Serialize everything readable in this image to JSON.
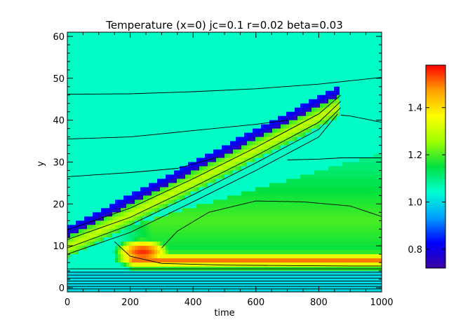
{
  "chart_data": {
    "type": "heatmap",
    "title": "Temperature (x=0) jc=0.1 r=0.02 beta=0.03",
    "xlabel": "time",
    "ylabel": "y",
    "xlim": [
      0,
      1000
    ],
    "ylim": [
      -1,
      61
    ],
    "xticks": [
      "0",
      "200",
      "400",
      "600",
      "800",
      "1000"
    ],
    "xtick_values": [
      0,
      200,
      400,
      600,
      800,
      1000
    ],
    "yticks": [
      "0",
      "10",
      "20",
      "30",
      "40",
      "50",
      "60"
    ],
    "ytick_values": [
      0,
      10,
      20,
      30,
      40,
      50,
      60
    ],
    "colorbar": {
      "range": [
        0.72,
        1.58
      ],
      "ticks": [
        "0.8",
        "1.0",
        "1.2",
        "1.4"
      ],
      "tick_values": [
        0.8,
        1.0,
        1.2,
        1.4
      ],
      "colormap": "rainbow",
      "colors": [
        "#3a00a0",
        "#0000ff",
        "#00a0ff",
        "#00ffd0",
        "#00e040",
        "#a0ff00",
        "#ffff00",
        "#ffa000",
        "#ff0000"
      ]
    },
    "background_value": 1.05,
    "features": {
      "hot_band": {
        "value": 1.5,
        "x_start": 150,
        "x_end": 1000,
        "y": 6.5
      },
      "hot_blob": {
        "value": 1.55,
        "x_center": 240,
        "y_center": 8.5
      },
      "green_region_value": 1.2,
      "front": {
        "x_start": 0,
        "x_end": 870,
        "y_start": 12,
        "y_end": 46,
        "hot_edge_value": 1.3,
        "cold_edge_value": 0.75
      }
    },
    "contours": [
      {
        "x": [
          0,
          200,
          400,
          600,
          800,
          1000
        ],
        "y": [
          46.2,
          46.3,
          46.8,
          47.5,
          48.6,
          50.2
        ]
      },
      {
        "x": [
          0,
          200,
          400,
          600,
          700,
          700
        ],
        "y": [
          35.5,
          36.0,
          37.5,
          39.0,
          40.0,
          40.5
        ]
      },
      {
        "x": [
          0,
          200,
          350,
          480
        ],
        "y": [
          26.5,
          27.5,
          28.5,
          31.2
        ]
      },
      {
        "x": [
          700,
          800,
          870,
          1000
        ],
        "y": [
          30.5,
          30.7,
          31.0,
          31.0
        ]
      },
      {
        "x": [
          870,
          900,
          1000
        ],
        "y": [
          41.2,
          41.0,
          39.5
        ]
      },
      {
        "x": [
          300,
          350,
          450,
          600,
          750,
          900,
          1000
        ],
        "y": [
          9.5,
          13.5,
          18.0,
          20.7,
          20.5,
          19.5,
          17.0
        ]
      },
      {
        "x": [
          150,
          200,
          300,
          500,
          700,
          900,
          1000
        ],
        "y": [
          11.0,
          7.5,
          5.8,
          5.4,
          5.3,
          5.2,
          5.2
        ]
      },
      {
        "x": [
          0,
          200,
          400,
          600,
          800,
          870
        ],
        "y": [
          13.8,
          19.0,
          26.0,
          33.5,
          41.5,
          46.0
        ]
      },
      {
        "x": [
          0,
          200,
          400,
          600,
          800,
          870
        ],
        "y": [
          11.5,
          16.8,
          24.0,
          31.5,
          39.5,
          44.5
        ]
      },
      {
        "x": [
          0,
          200,
          400,
          600,
          800,
          870
        ],
        "y": [
          9.5,
          15.0,
          22.2,
          29.8,
          37.8,
          43.0
        ]
      },
      {
        "x": [
          0,
          200,
          400,
          600,
          800,
          860
        ],
        "y": [
          8.0,
          13.2,
          20.5,
          28.0,
          36.0,
          41.5
        ]
      },
      {
        "x": [
          0,
          1000
        ],
        "y": [
          4.5,
          4.5
        ]
      },
      {
        "x": [
          0,
          1000
        ],
        "y": [
          3.7,
          3.7
        ]
      },
      {
        "x": [
          0,
          1000
        ],
        "y": [
          3.0,
          3.0
        ]
      },
      {
        "x": [
          0,
          1000
        ],
        "y": [
          2.3,
          2.3
        ]
      },
      {
        "x": [
          0,
          1000
        ],
        "y": [
          1.6,
          1.6
        ]
      },
      {
        "x": [
          0,
          1000
        ],
        "y": [
          0.9,
          0.9
        ]
      },
      {
        "x": [
          0,
          1000
        ],
        "y": [
          0.3,
          0.3
        ]
      },
      {
        "x": [
          0,
          1000
        ],
        "y": [
          -0.3,
          -0.3
        ]
      }
    ]
  }
}
